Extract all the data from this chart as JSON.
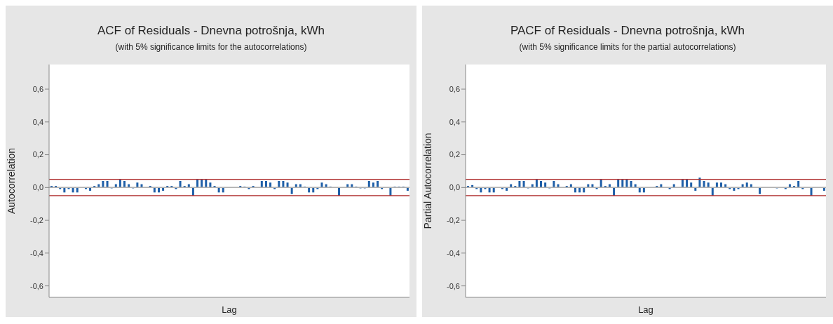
{
  "chart_data": [
    {
      "type": "bar",
      "title": "ACF of Residuals - Dnevna potrošnja, kWh",
      "subtitle": "(with 5% significance limits for the autocorrelations)",
      "xlabel": "Lag",
      "ylabel": "Autocorrelation",
      "color": "#1f5fa8",
      "tick_labels": "y",
      "categories": [
        null,
        null,
        null,
        null,
        null,
        null,
        null,
        null,
        null,
        null,
        null,
        null,
        null,
        null,
        null,
        null,
        null,
        null,
        null,
        null,
        null,
        null,
        null,
        null,
        null,
        null,
        null,
        null,
        null,
        null,
        null,
        null,
        null,
        null,
        null,
        null,
        null,
        null,
        null,
        null,
        null,
        null,
        null,
        null,
        null,
        null,
        null,
        null,
        null,
        null,
        null,
        null,
        null,
        null,
        null,
        null,
        null,
        null,
        null,
        null,
        null,
        null,
        null,
        null,
        null,
        null,
        null,
        null,
        null,
        null,
        null,
        null,
        null,
        null,
        null,
        null,
        null,
        null,
        null,
        null,
        null,
        null,
        null,
        null
      ],
      "values": [
        0.01,
        0.01,
        -0.01,
        -0.03,
        -0.01,
        -0.03,
        -0.03,
        0,
        -0.01,
        -0.02,
        0.01,
        0.02,
        0.04,
        0.04,
        -0.005,
        0.02,
        0.05,
        0.04,
        0.02,
        -0.005,
        0.03,
        0.02,
        0,
        0.01,
        -0.03,
        -0.03,
        -0.02,
        0.01,
        0.01,
        -0.01,
        0.04,
        0.01,
        0.02,
        -0.05,
        0.05,
        0.05,
        0.05,
        0.03,
        0.01,
        -0.03,
        -0.03,
        0,
        0,
        0,
        0.01,
        0.005,
        -0.01,
        0.01,
        0,
        0.04,
        0.04,
        0.03,
        -0.01,
        0.04,
        0.04,
        0.03,
        -0.04,
        0.02,
        0.02,
        0.005,
        -0.03,
        -0.03,
        -0.01,
        0.03,
        0.02,
        0.005,
        0,
        -0.05,
        0,
        0.02,
        0.02,
        0.005,
        -0.005,
        -0.005,
        0.04,
        0.03,
        0.04,
        -0.01,
        0,
        -0.05,
        0.005,
        0.005,
        0.005,
        -0.02
      ],
      "ylim": [
        -0.67,
        0.75
      ],
      "yticks": [
        {
          "value": -0.6,
          "label": "-0,6"
        },
        {
          "value": -0.4,
          "label": "-0,4"
        },
        {
          "value": -0.2,
          "label": "-0,2"
        },
        {
          "value": 0,
          "label": "0,0"
        },
        {
          "value": 0.2,
          "label": "0,2"
        },
        {
          "value": 0.4,
          "label": "0,4"
        },
        {
          "value": 0.6,
          "label": "0,6"
        }
      ],
      "ref_lines": [
        {
          "axis": "y",
          "value": 0.05,
          "color": "#b03030"
        },
        {
          "axis": "y",
          "value": -0.05,
          "color": "#b03030"
        },
        {
          "axis": "y",
          "value": 0,
          "color": "#b0b0b0"
        }
      ]
    },
    {
      "type": "bar",
      "title": "PACF of Residuals - Dnevna potrošnja, kWh",
      "subtitle": "(with 5% significance limits for the partial autocorrelations)",
      "xlabel": "Lag",
      "ylabel": "Partial Autocorrelation",
      "color": "#1f5fa8",
      "tick_labels": "y",
      "categories": [
        null,
        null,
        null,
        null,
        null,
        null,
        null,
        null,
        null,
        null,
        null,
        null,
        null,
        null,
        null,
        null,
        null,
        null,
        null,
        null,
        null,
        null,
        null,
        null,
        null,
        null,
        null,
        null,
        null,
        null,
        null,
        null,
        null,
        null,
        null,
        null,
        null,
        null,
        null,
        null,
        null,
        null,
        null,
        null,
        null,
        null,
        null,
        null,
        null,
        null,
        null,
        null,
        null,
        null,
        null,
        null,
        null,
        null,
        null,
        null,
        null,
        null,
        null,
        null,
        null,
        null,
        null,
        null,
        null,
        null,
        null,
        null,
        null,
        null,
        null,
        null,
        null,
        null,
        null,
        null,
        null,
        null,
        null,
        null
      ],
      "values": [
        0.01,
        0.015,
        -0.01,
        -0.03,
        -0.01,
        -0.03,
        -0.03,
        0,
        -0.01,
        -0.02,
        0.02,
        0.01,
        0.04,
        0.04,
        -0.005,
        0.02,
        0.05,
        0.04,
        0.03,
        -0.005,
        0.04,
        0.02,
        0,
        0.01,
        0.02,
        -0.03,
        -0.03,
        -0.03,
        0.02,
        0.02,
        -0.01,
        0.05,
        0.01,
        0.02,
        -0.05,
        0.05,
        0.05,
        0.05,
        0.04,
        0.02,
        -0.03,
        -0.03,
        0,
        0,
        0.01,
        0.02,
        0,
        -0.01,
        0.02,
        0,
        0.05,
        0.05,
        0.03,
        -0.02,
        0.06,
        0.04,
        0.03,
        -0.05,
        0.03,
        0.03,
        0.02,
        -0.01,
        -0.02,
        -0.01,
        0.02,
        0.03,
        0.02,
        0,
        -0.04,
        0,
        0,
        0,
        -0.005,
        0,
        -0.01,
        0.02,
        0.01,
        0.04,
        -0.01,
        0,
        -0.05,
        0,
        0,
        -0.02
      ],
      "ylim": [
        -0.67,
        0.75
      ],
      "yticks": [
        {
          "value": -0.6,
          "label": "-0,6"
        },
        {
          "value": -0.4,
          "label": "-0,4"
        },
        {
          "value": -0.2,
          "label": "-0,2"
        },
        {
          "value": 0,
          "label": "0,0"
        },
        {
          "value": 0.2,
          "label": "0,2"
        },
        {
          "value": 0.4,
          "label": "0,4"
        },
        {
          "value": 0.6,
          "label": "0,6"
        }
      ],
      "ref_lines": [
        {
          "axis": "y",
          "value": 0.05,
          "color": "#b03030"
        },
        {
          "axis": "y",
          "value": -0.05,
          "color": "#b03030"
        },
        {
          "axis": "y",
          "value": 0,
          "color": "#b0b0b0"
        }
      ]
    }
  ]
}
